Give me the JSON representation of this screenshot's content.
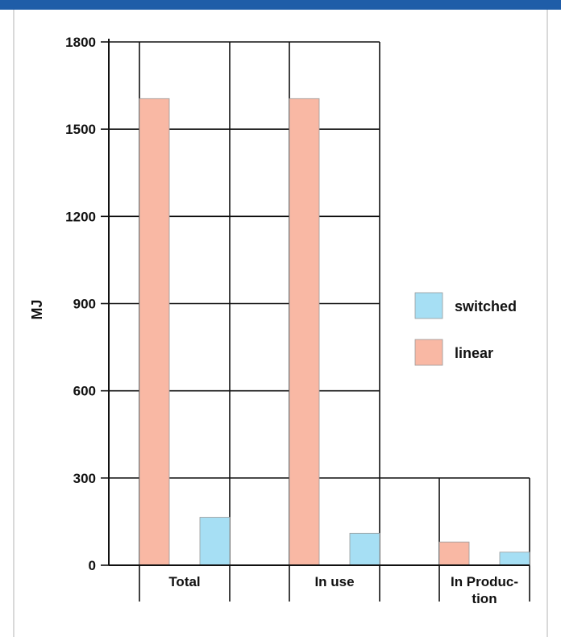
{
  "chart_data": {
    "type": "bar",
    "title": "",
    "xlabel": "",
    "ylabel": "MJ",
    "ylim": [
      0,
      1800
    ],
    "yticks": [
      "0",
      "300",
      "600",
      "900",
      "1200",
      "1500",
      "1800"
    ],
    "categories": [
      "Total",
      "In use",
      "In Produc-\ntion"
    ],
    "series": [
      {
        "name": "linear",
        "values": [
          1605,
          1605,
          80
        ]
      },
      {
        "name": "switched",
        "values": [
          165,
          110,
          45
        ]
      }
    ],
    "legend_position": "right",
    "grid": true,
    "colors": {
      "linear": "#f9b8a4",
      "switched": "#a6dff4",
      "header_bar": "#1f5da8"
    }
  }
}
